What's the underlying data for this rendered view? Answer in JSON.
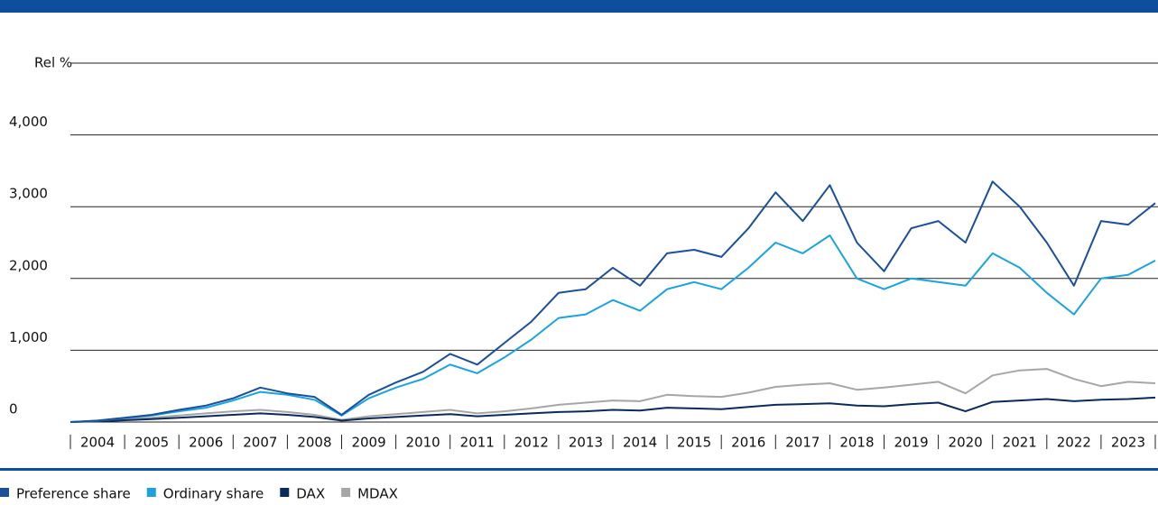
{
  "chart_data": {
    "type": "line",
    "y_label": "Rel %",
    "xlim": [
      2004,
      2024
    ],
    "xticks": [
      2004,
      2005,
      2006,
      2007,
      2008,
      2009,
      2010,
      2011,
      2012,
      2013,
      2014,
      2015,
      2016,
      2017,
      2018,
      2019,
      2020,
      2021,
      2022,
      2023,
      2024
    ],
    "categories": [
      "2004",
      "2005",
      "2006",
      "2007",
      "2008",
      "2009",
      "2010",
      "2011",
      "2012",
      "2013",
      "2014",
      "2015",
      "2016",
      "2017",
      "2018",
      "2019",
      "2020",
      "2021",
      "2022",
      "2023"
    ],
    "ylim": [
      0,
      5000
    ],
    "yticks": [
      0,
      {
        "value": 1000,
        "label": "1,000"
      },
      {
        "value": 2000,
        "label": "2,000"
      },
      {
        "value": 3000,
        "label": "3,000"
      },
      {
        "value": 4000,
        "label": "4,000"
      }
    ],
    "grid": true,
    "x": [
      2004,
      2004.5,
      2005,
      2005.5,
      2006,
      2006.5,
      2007,
      2007.5,
      2008,
      2008.5,
      2009,
      2009.5,
      2010,
      2010.5,
      2011,
      2011.5,
      2012,
      2012.5,
      2013,
      2013.5,
      2014,
      2014.5,
      2015,
      2015.5,
      2016,
      2016.5,
      2017,
      2017.5,
      2018,
      2018.5,
      2019,
      2019.5,
      2020,
      2020.5,
      2021,
      2021.5,
      2022,
      2022.5,
      2023,
      2023.5,
      2024
    ],
    "series": [
      {
        "name": "Preference share",
        "color": "#1a4f9c",
        "values": [
          0,
          20,
          60,
          100,
          170,
          230,
          330,
          480,
          400,
          350,
          100,
          380,
          550,
          700,
          950,
          800,
          1100,
          1400,
          1800,
          1850,
          2150,
          1900,
          2350,
          2400,
          2300,
          2700,
          3200,
          2800,
          3300,
          2500,
          2100,
          2700,
          2800,
          2500,
          3350,
          3000,
          2500,
          1900,
          2800,
          2750,
          3050
        ]
      },
      {
        "name": "Ordinary share",
        "color": "#1aa3e0",
        "values": [
          0,
          18,
          55,
          90,
          150,
          200,
          300,
          420,
          380,
          310,
          90,
          330,
          480,
          600,
          800,
          680,
          900,
          1150,
          1450,
          1500,
          1700,
          1550,
          1850,
          1950,
          1850,
          2150,
          2500,
          2350,
          2600,
          2000,
          1850,
          2000,
          1950,
          1900,
          2350,
          2150,
          1800,
          1500,
          2000,
          2050,
          2250
        ]
      },
      {
        "name": "DAX",
        "color": "#0a2a5c",
        "values": [
          0,
          10,
          25,
          40,
          60,
          80,
          100,
          120,
          100,
          70,
          20,
          50,
          70,
          90,
          110,
          80,
          100,
          120,
          140,
          150,
          170,
          160,
          200,
          190,
          180,
          210,
          240,
          250,
          260,
          230,
          220,
          250,
          270,
          150,
          280,
          300,
          320,
          290,
          310,
          320,
          340
        ]
      },
      {
        "name": "MDAX",
        "color": "#a6a6a6",
        "values": [
          0,
          15,
          40,
          60,
          90,
          120,
          150,
          170,
          140,
          100,
          30,
          80,
          110,
          140,
          170,
          120,
          150,
          190,
          240,
          270,
          300,
          290,
          380,
          360,
          350,
          410,
          490,
          520,
          540,
          450,
          480,
          520,
          560,
          400,
          650,
          720,
          740,
          600,
          500,
          560,
          540
        ]
      }
    ]
  }
}
